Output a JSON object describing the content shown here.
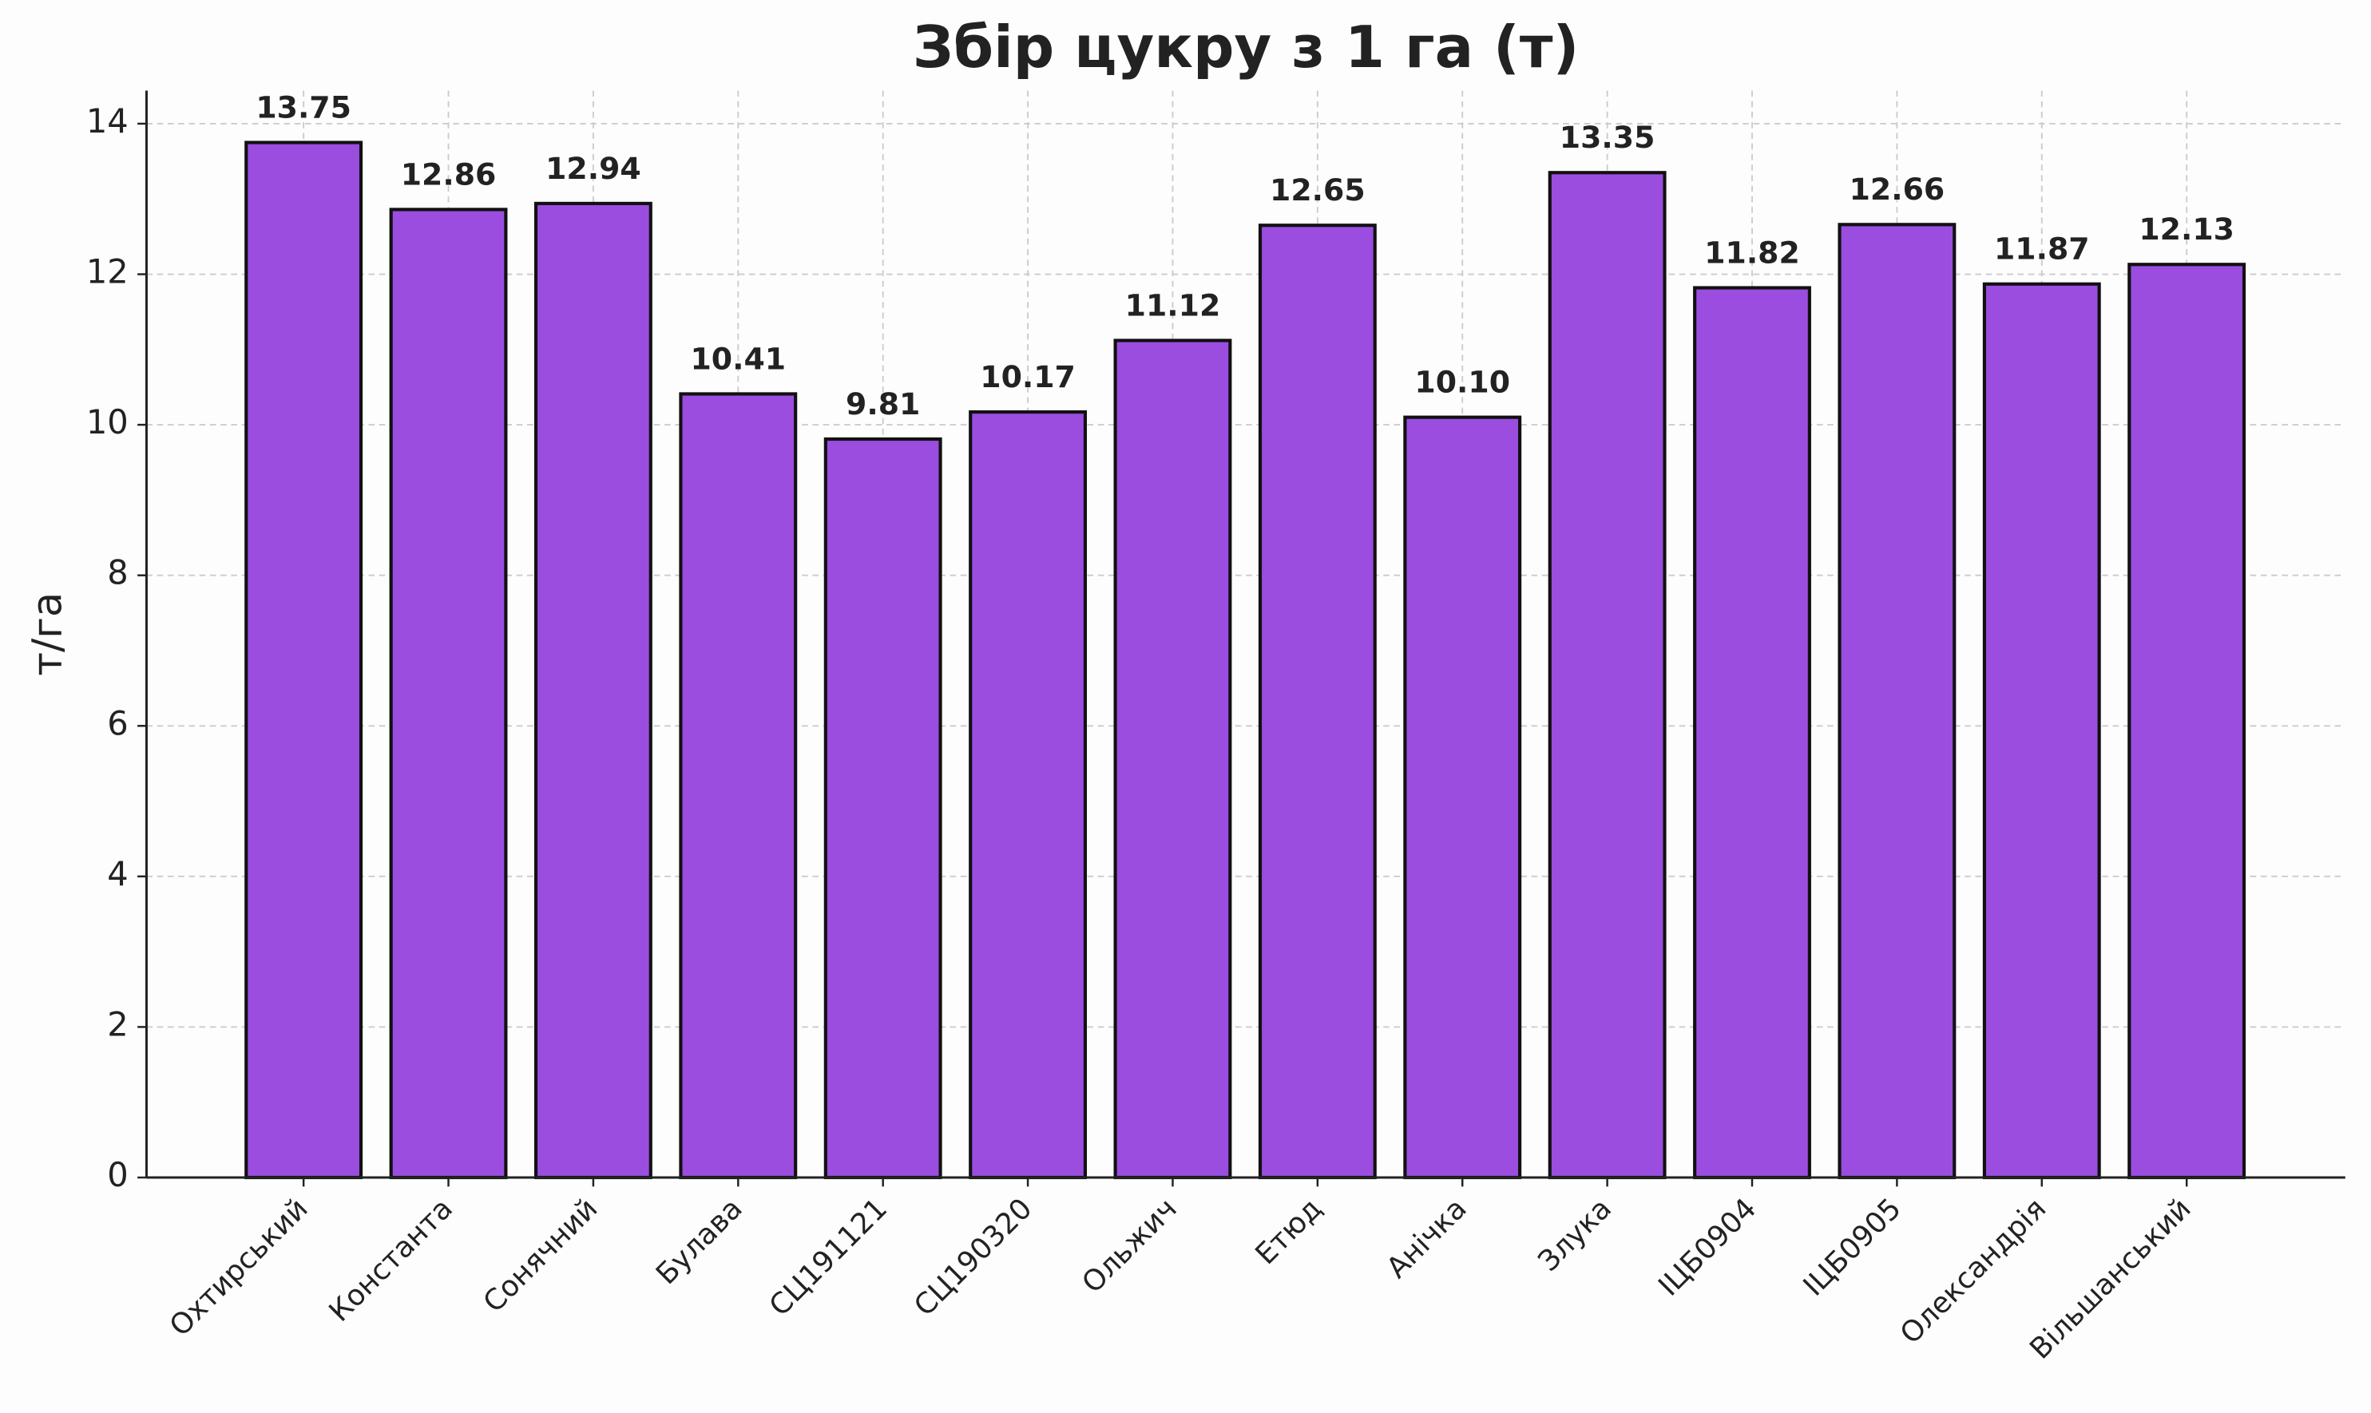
{
  "chart_data": {
    "type": "bar",
    "title": "Збір цукру з 1 га (т)",
    "y_label": "т/га",
    "categories": [
      "Охтирський",
      "Константа",
      "Сонячний",
      "Булава",
      "СЦ191121",
      "СЦ190320",
      "Ольжич",
      "Етюд",
      "Анічка",
      "Злука",
      "ІЦБ0904",
      "ІЦБ0905",
      "Олександрія",
      "Вільшанський"
    ],
    "values": [
      13.75,
      12.86,
      12.94,
      10.41,
      9.81,
      10.17,
      11.12,
      12.65,
      10.1,
      13.35,
      11.82,
      12.66,
      11.87,
      12.13
    ],
    "value_labels": [
      "13.75",
      "12.86",
      "12.94",
      "10.41",
      "9.81",
      "10.17",
      "11.12",
      "12.65",
      "10.10",
      "13.35",
      "11.82",
      "12.66",
      "11.87",
      "12.13"
    ],
    "color": "#9b4de0",
    "edge_color": "#111111",
    "ylim": [
      0,
      14.44
    ],
    "yticks": [
      0,
      2,
      4,
      6,
      8,
      10,
      12,
      14
    ],
    "grid": true
  }
}
